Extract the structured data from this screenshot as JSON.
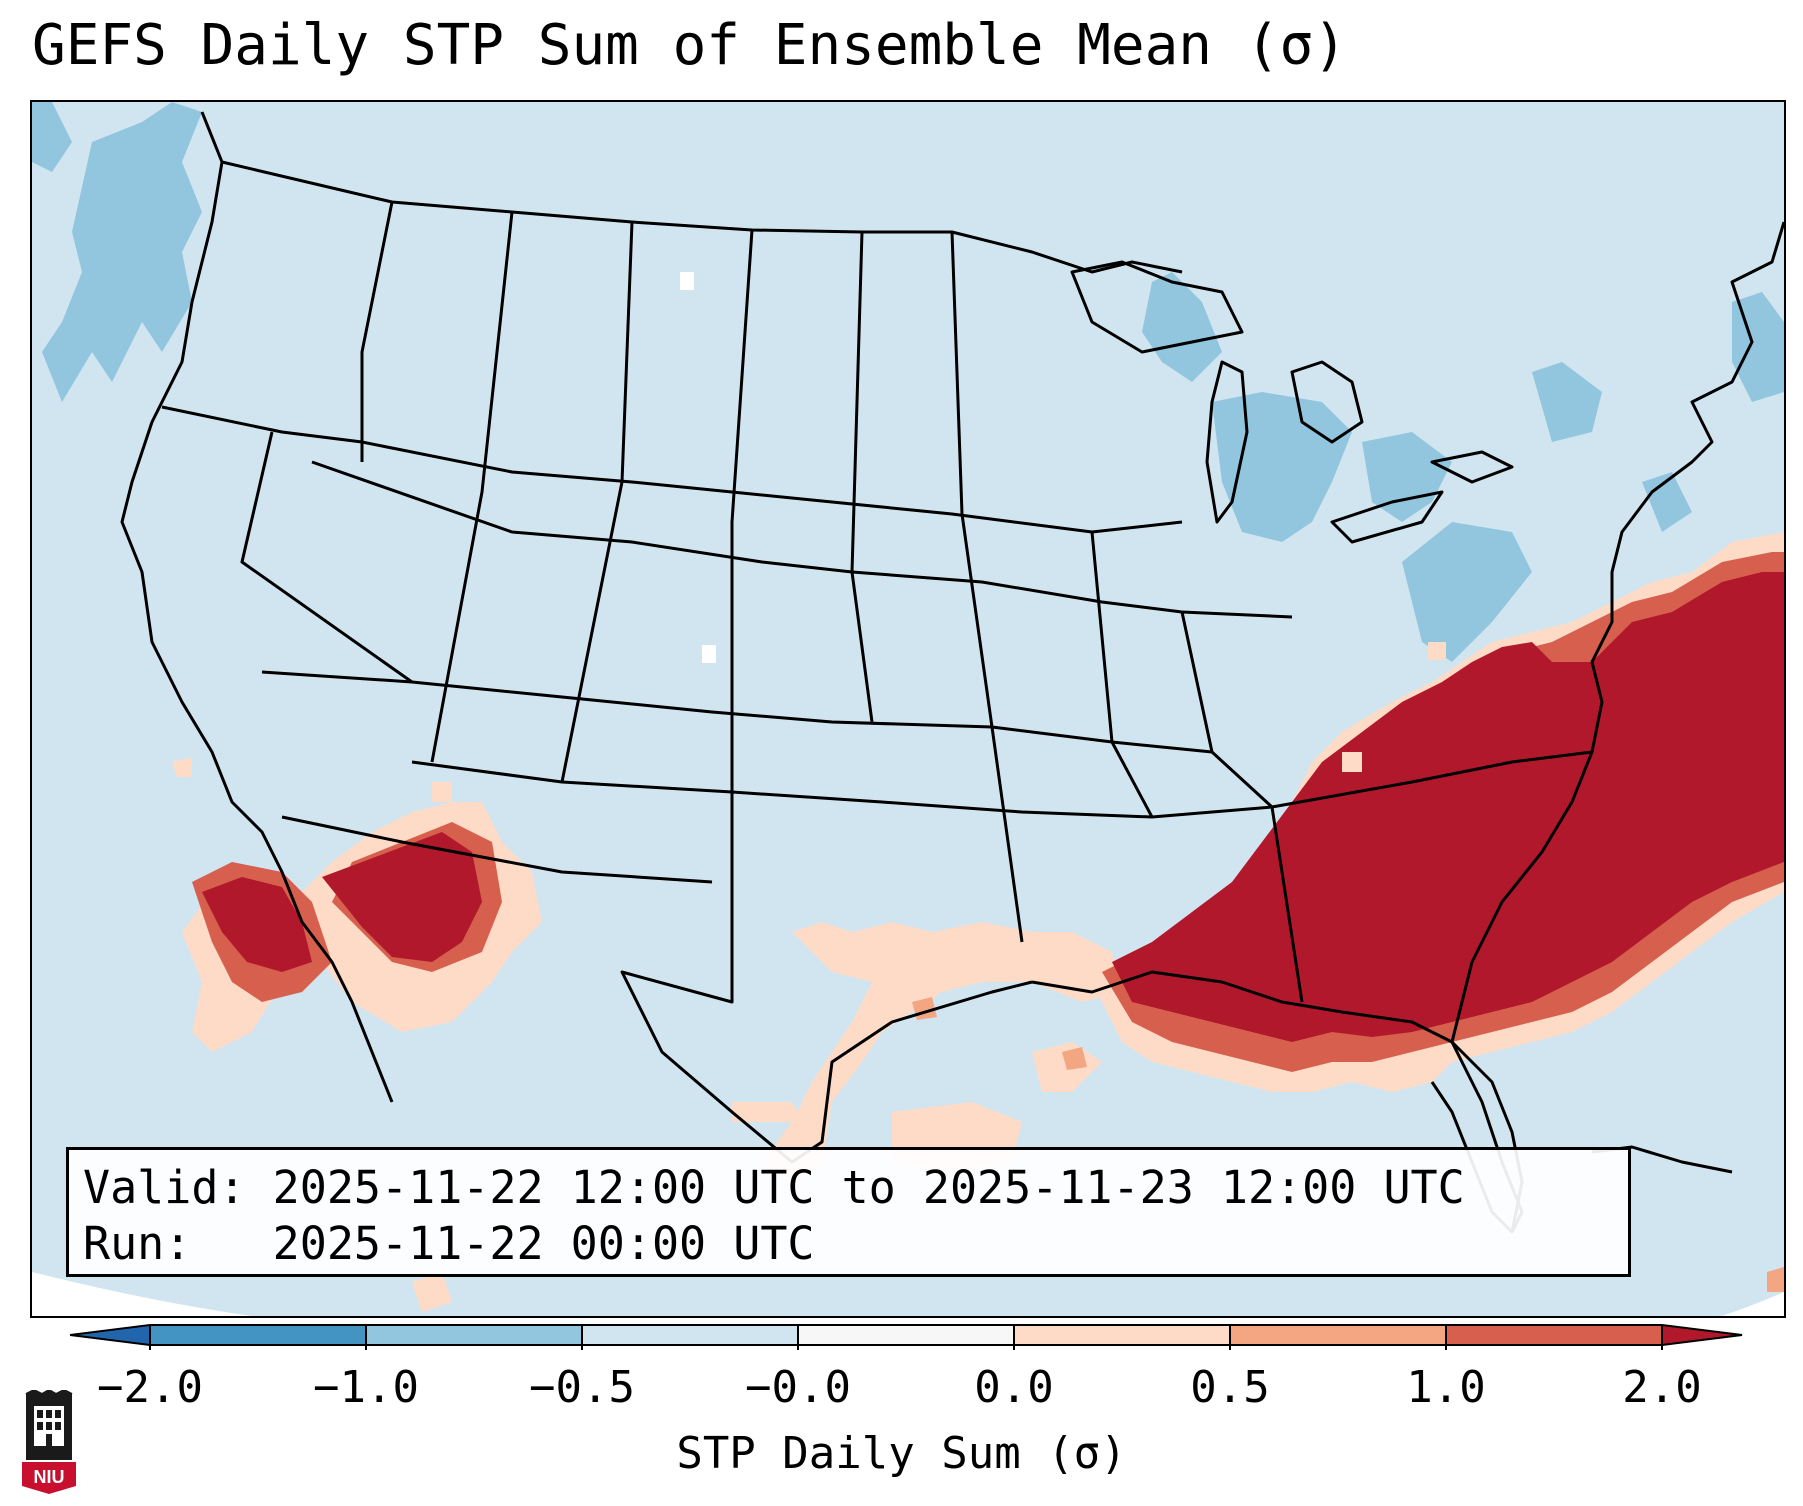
{
  "title": "GEFS Daily STP Sum of Ensemble Mean (σ)",
  "info": {
    "valid_label": "Valid:",
    "valid_text": "2025-11-22 12:00 UTC to 2025-11-23 12:00 UTC",
    "run_label": "Run:  ",
    "run_text": "2025-11-22 00:00 UTC"
  },
  "colorbar": {
    "label": "STP Daily Sum (σ)",
    "ticks": [
      "−2.0",
      "−1.0",
      "−0.5",
      "−0.0",
      "0.0",
      "0.5",
      "1.0",
      "2.0"
    ],
    "bins": [
      {
        "range": "< -2.0",
        "color": "#2166ac"
      },
      {
        "range": "-2.0 to -1.0",
        "color": "#4393c3"
      },
      {
        "range": "-1.0 to -0.5",
        "color": "#92c5de"
      },
      {
        "range": "-0.5 to -0.0",
        "color": "#d1e5f0"
      },
      {
        "range": "-0.0 to 0.0",
        "color": "#f7f7f7"
      },
      {
        "range": "0.0 to 0.5",
        "color": "#fddbc7"
      },
      {
        "range": "0.5 to 1.0",
        "color": "#f4a582"
      },
      {
        "range": "1.0 to 2.0",
        "color": "#d6604d"
      },
      {
        "range": "> 2.0",
        "color": "#b2182b"
      }
    ]
  },
  "map": {
    "region": "Contiguous United States",
    "background_color": "#d1e5f0",
    "anomaly_colors": {
      "strong_positive": "#b2182b",
      "positive": "#d6604d",
      "mild_positive": "#f4a582",
      "slight_positive": "#fddbc7",
      "slight_negative": "#92c5de",
      "neutral": "#ffffff"
    },
    "notable_regions": [
      {
        "name": "Southeast US / Carolinas",
        "anomaly": "strong positive"
      },
      {
        "name": "Gulf Coast",
        "anomaly": "positive"
      },
      {
        "name": "Arizona / Sonora",
        "anomaly": "strong positive"
      },
      {
        "name": "Western Atlantic",
        "anomaly": "strong positive"
      },
      {
        "name": "Great Lakes / Northeast",
        "anomaly": "slight negative"
      },
      {
        "name": "Pacific Northwest coast",
        "anomaly": "slight negative"
      }
    ]
  },
  "logo": {
    "text": "NIU",
    "color": "#c8102e"
  }
}
